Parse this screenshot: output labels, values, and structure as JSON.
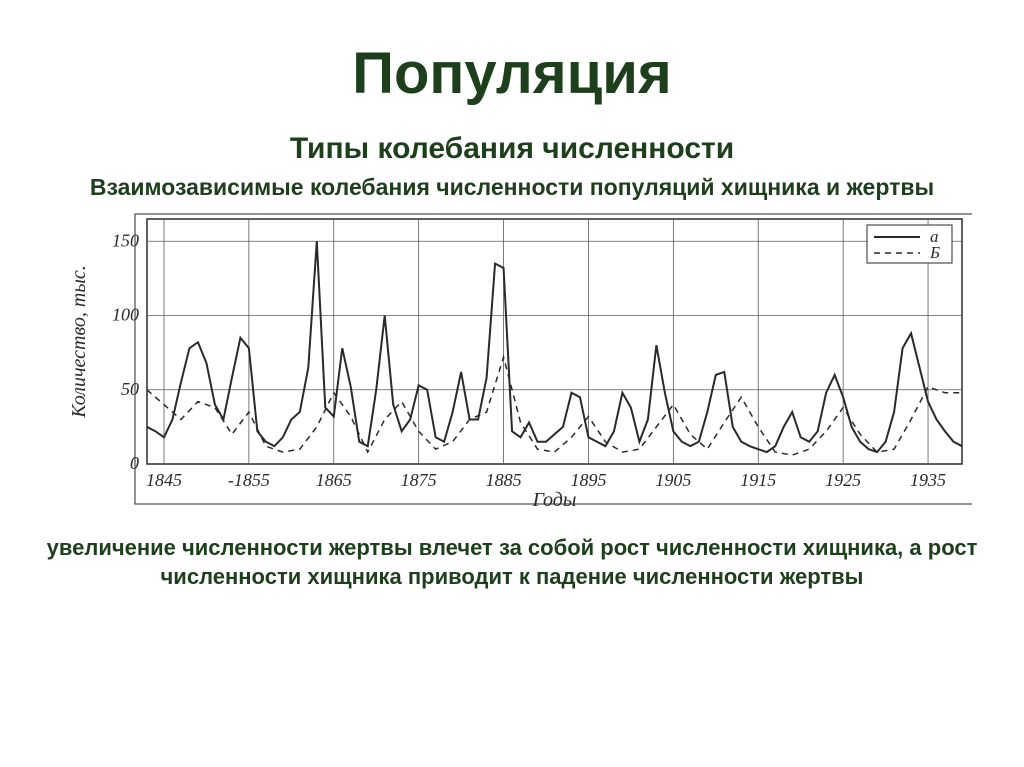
{
  "title": "Популяция",
  "subtitle": "Типы колебания численности",
  "sub_subtitle": "Взаимозависимые колебания численности популяций хищника и жертвы",
  "bottom_text": "увеличение численности жертвы влечет за собой рост численности хищника, а рост численности хищника приводит к падение численности жертвы",
  "chart": {
    "type": "line",
    "background_color": "#ffffff",
    "frame_color": "#2a2a2a",
    "grid_color": "#5a5a5a",
    "x_label": "Годы",
    "y_label": "Количество, тыс.",
    "x_ticks": [
      1845,
      1855,
      1865,
      1875,
      1885,
      1895,
      1905,
      1915,
      1925,
      1935
    ],
    "x_range": [
      1843,
      1939
    ],
    "y_ticks": [
      0,
      50,
      100,
      150
    ],
    "y_range": [
      0,
      165
    ],
    "legend": {
      "items": [
        {
          "label": "а",
          "style": "solid"
        },
        {
          "label": "Б",
          "style": "dashed"
        }
      ]
    },
    "series_a": {
      "color": "#2a2a2a",
      "width": 2,
      "style": "solid",
      "points": [
        [
          1843,
          25
        ],
        [
          1844,
          22
        ],
        [
          1845,
          18
        ],
        [
          1846,
          30
        ],
        [
          1847,
          55
        ],
        [
          1848,
          78
        ],
        [
          1849,
          82
        ],
        [
          1850,
          68
        ],
        [
          1851,
          40
        ],
        [
          1852,
          30
        ],
        [
          1853,
          58
        ],
        [
          1854,
          85
        ],
        [
          1855,
          78
        ],
        [
          1856,
          22
        ],
        [
          1857,
          15
        ],
        [
          1858,
          12
        ],
        [
          1859,
          18
        ],
        [
          1860,
          30
        ],
        [
          1861,
          35
        ],
        [
          1862,
          65
        ],
        [
          1863,
          150
        ],
        [
          1864,
          38
        ],
        [
          1865,
          32
        ],
        [
          1866,
          78
        ],
        [
          1867,
          52
        ],
        [
          1868,
          15
        ],
        [
          1869,
          12
        ],
        [
          1870,
          50
        ],
        [
          1871,
          100
        ],
        [
          1872,
          40
        ],
        [
          1873,
          22
        ],
        [
          1874,
          30
        ],
        [
          1875,
          53
        ],
        [
          1876,
          50
        ],
        [
          1877,
          18
        ],
        [
          1878,
          15
        ],
        [
          1879,
          35
        ],
        [
          1880,
          62
        ],
        [
          1881,
          30
        ],
        [
          1882,
          30
        ],
        [
          1883,
          58
        ],
        [
          1884,
          135
        ],
        [
          1885,
          132
        ],
        [
          1886,
          22
        ],
        [
          1887,
          18
        ],
        [
          1888,
          28
        ],
        [
          1889,
          15
        ],
        [
          1890,
          15
        ],
        [
          1891,
          20
        ],
        [
          1892,
          25
        ],
        [
          1893,
          48
        ],
        [
          1894,
          45
        ],
        [
          1895,
          18
        ],
        [
          1896,
          15
        ],
        [
          1897,
          12
        ],
        [
          1898,
          22
        ],
        [
          1899,
          48
        ],
        [
          1900,
          38
        ],
        [
          1901,
          15
        ],
        [
          1902,
          30
        ],
        [
          1903,
          80
        ],
        [
          1904,
          48
        ],
        [
          1905,
          22
        ],
        [
          1906,
          15
        ],
        [
          1907,
          12
        ],
        [
          1908,
          15
        ],
        [
          1909,
          35
        ],
        [
          1910,
          60
        ],
        [
          1911,
          62
        ],
        [
          1912,
          25
        ],
        [
          1913,
          15
        ],
        [
          1914,
          12
        ],
        [
          1915,
          10
        ],
        [
          1916,
          8
        ],
        [
          1917,
          12
        ],
        [
          1918,
          25
        ],
        [
          1919,
          35
        ],
        [
          1920,
          18
        ],
        [
          1921,
          15
        ],
        [
          1922,
          22
        ],
        [
          1923,
          48
        ],
        [
          1924,
          60
        ],
        [
          1925,
          45
        ],
        [
          1926,
          25
        ],
        [
          1927,
          15
        ],
        [
          1928,
          10
        ],
        [
          1929,
          8
        ],
        [
          1930,
          15
        ],
        [
          1931,
          35
        ],
        [
          1932,
          78
        ],
        [
          1933,
          88
        ],
        [
          1934,
          65
        ],
        [
          1935,
          42
        ],
        [
          1936,
          30
        ],
        [
          1937,
          22
        ],
        [
          1938,
          15
        ],
        [
          1939,
          12
        ]
      ]
    },
    "series_b": {
      "color": "#2a2a2a",
      "width": 1.5,
      "style": "dashed",
      "dash": "6,5",
      "points": [
        [
          1843,
          50
        ],
        [
          1845,
          40
        ],
        [
          1847,
          30
        ],
        [
          1849,
          42
        ],
        [
          1851,
          38
        ],
        [
          1853,
          20
        ],
        [
          1855,
          35
        ],
        [
          1857,
          12
        ],
        [
          1859,
          8
        ],
        [
          1861,
          10
        ],
        [
          1863,
          25
        ],
        [
          1865,
          48
        ],
        [
          1867,
          32
        ],
        [
          1869,
          8
        ],
        [
          1871,
          30
        ],
        [
          1873,
          42
        ],
        [
          1875,
          22
        ],
        [
          1877,
          10
        ],
        [
          1879,
          15
        ],
        [
          1881,
          30
        ],
        [
          1883,
          35
        ],
        [
          1885,
          72
        ],
        [
          1887,
          28
        ],
        [
          1889,
          10
        ],
        [
          1891,
          8
        ],
        [
          1893,
          18
        ],
        [
          1895,
          32
        ],
        [
          1897,
          15
        ],
        [
          1899,
          8
        ],
        [
          1901,
          10
        ],
        [
          1903,
          25
        ],
        [
          1905,
          40
        ],
        [
          1907,
          20
        ],
        [
          1909,
          10
        ],
        [
          1911,
          28
        ],
        [
          1913,
          45
        ],
        [
          1915,
          25
        ],
        [
          1917,
          8
        ],
        [
          1919,
          6
        ],
        [
          1921,
          10
        ],
        [
          1923,
          22
        ],
        [
          1925,
          38
        ],
        [
          1927,
          20
        ],
        [
          1929,
          8
        ],
        [
          1931,
          10
        ],
        [
          1933,
          30
        ],
        [
          1935,
          52
        ],
        [
          1937,
          48
        ],
        [
          1939,
          48
        ]
      ]
    }
  }
}
